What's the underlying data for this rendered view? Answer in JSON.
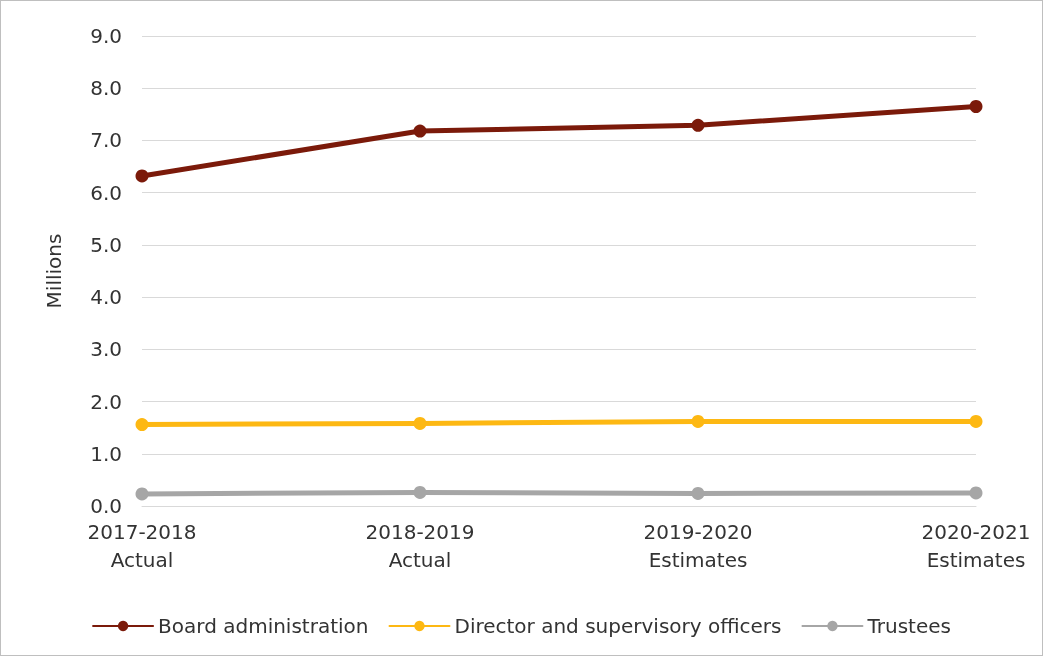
{
  "chart_data": {
    "type": "line",
    "ylabel": "Millions",
    "categories": [
      "2017-2018\nActual",
      "2018-2019\nActual",
      "2019-2020\nEstimates",
      "2020-2021\nEstimates"
    ],
    "series": [
      {
        "name": "Board administration",
        "color": "#7b1a0a",
        "values": [
          6.32,
          7.18,
          7.29,
          7.65
        ]
      },
      {
        "name": "Director and supervisory officers",
        "color": "#fdb813",
        "values": [
          1.56,
          1.58,
          1.62,
          1.62
        ]
      },
      {
        "name": "Trustees",
        "color": "#a6a6a6",
        "values": [
          0.23,
          0.26,
          0.24,
          0.25
        ]
      }
    ],
    "ylim": [
      0,
      9
    ],
    "yticks": [
      {
        "value": 0,
        "label": "0.0"
      },
      {
        "value": 1,
        "label": "1.0"
      },
      {
        "value": 2,
        "label": "2.0"
      },
      {
        "value": 3,
        "label": "3.0"
      },
      {
        "value": 4,
        "label": "4.0"
      },
      {
        "value": 5,
        "label": "5.0"
      },
      {
        "value": 6,
        "label": "6.0"
      },
      {
        "value": 7,
        "label": "7.0"
      },
      {
        "value": 8,
        "label": "8.0"
      },
      {
        "value": 9,
        "label": "9.0"
      }
    ],
    "grid": "y",
    "legend": "bottom",
    "marker": "circle",
    "line_style": "solid"
  }
}
